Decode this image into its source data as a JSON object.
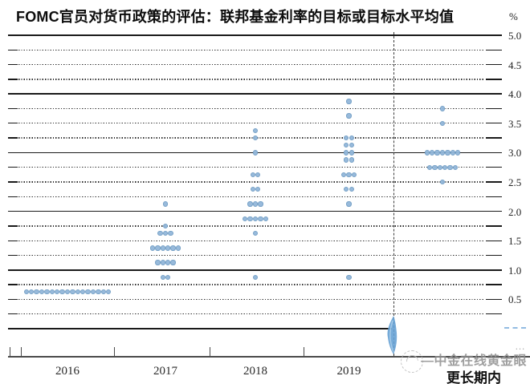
{
  "title": "FOMC官员对货币政策的评估：联邦基金利率的目标或目标水平均值",
  "y_axis": {
    "unit": "%",
    "tick_labels": [
      "5.0",
      "4.5",
      "4.0",
      "3.5",
      "3.0",
      "2.5",
      "2.0",
      "1.5",
      "1.0",
      "0.5"
    ]
  },
  "x_axis": {
    "labels": [
      "2016",
      "2017",
      "2018",
      "2019",
      "更长期内"
    ]
  },
  "watermark": {
    "text": "—中金在线黄金眼",
    "ellipsis": "…"
  },
  "colors": {
    "dot_fill": "#93b7da",
    "dot_edge": "#6f9cc4",
    "gridline": "#1a1a1a",
    "axis": "#4a4a4a",
    "watermark_gray": "#8f8f8f",
    "smear_blue": "#66a1d4"
  },
  "chart_data": {
    "type": "scatter",
    "title": "FOMC官员对货币政策的评估：联邦基金利率的目标或目标水平均值",
    "ylabel": "%",
    "ylim": [
      0,
      5.0
    ],
    "gridline_step": 0.25,
    "solid_gridlines": [
      5.0,
      4.0,
      3.0,
      2.0,
      1.0,
      0.0
    ],
    "label_step": 0.5,
    "legend": "none",
    "divider_note": "dashed vertical line separates 2019 from 更长期内 (longer run)",
    "categories": [
      "2016",
      "2017",
      "2018",
      "2019",
      "更长期内"
    ],
    "series": [
      {
        "name": "2016",
        "dots": [
          {
            "value": 0.625,
            "count": 17
          }
        ]
      },
      {
        "name": "2017",
        "dots": [
          {
            "value": 2.125,
            "count": 1
          },
          {
            "value": 1.75,
            "count": 1
          },
          {
            "value": 1.625,
            "count": 3
          },
          {
            "value": 1.375,
            "count": 6
          },
          {
            "value": 1.125,
            "count": 4
          },
          {
            "value": 0.875,
            "count": 2
          }
        ]
      },
      {
        "name": "2018",
        "dots": [
          {
            "value": 3.375,
            "count": 1
          },
          {
            "value": 3.25,
            "count": 1
          },
          {
            "value": 3.0,
            "count": 1
          },
          {
            "value": 2.625,
            "count": 2
          },
          {
            "value": 2.375,
            "count": 2
          },
          {
            "value": 2.125,
            "count": 3
          },
          {
            "value": 1.875,
            "count": 5
          },
          {
            "value": 1.625,
            "count": 1
          },
          {
            "value": 0.875,
            "count": 1
          }
        ]
      },
      {
        "name": "2019",
        "dots": [
          {
            "value": 3.875,
            "count": 1
          },
          {
            "value": 3.625,
            "count": 1
          },
          {
            "value": 3.25,
            "count": 2
          },
          {
            "value": 3.125,
            "count": 2
          },
          {
            "value": 3.0,
            "count": 2
          },
          {
            "value": 2.875,
            "count": 2
          },
          {
            "value": 2.625,
            "count": 3
          },
          {
            "value": 2.375,
            "count": 2
          },
          {
            "value": 2.125,
            "count": 1
          },
          {
            "value": 0.875,
            "count": 1
          }
        ]
      },
      {
        "name": "更长期内",
        "dots": [
          {
            "value": 3.75,
            "count": 1
          },
          {
            "value": 3.5,
            "count": 1
          },
          {
            "value": 3.0,
            "count": 7
          },
          {
            "value": 2.75,
            "count": 6
          },
          {
            "value": 2.5,
            "count": 1
          }
        ]
      }
    ]
  }
}
